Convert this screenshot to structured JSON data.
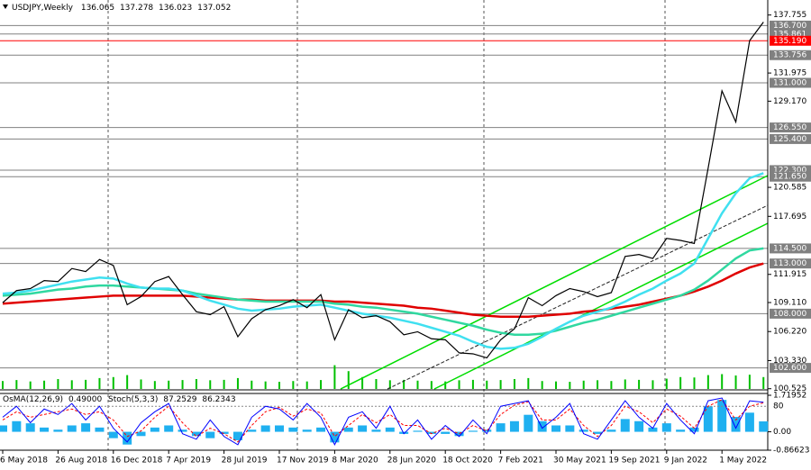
{
  "chart_data": {
    "type": "line",
    "symbol": "USDJPY,Weekly",
    "quote": [
      136.065,
      137.278,
      136.023,
      137.052
    ],
    "categories": [
      "6 May 2018",
      null,
      null,
      null,
      "26 Aug 2018",
      null,
      null,
      null,
      "16 Dec 2018",
      null,
      null,
      null,
      "7 Apr 2019",
      null,
      null,
      null,
      "28 Jul 2019",
      null,
      null,
      null,
      "17 Nov 2019",
      null,
      null,
      null,
      "8 Mar 2020",
      null,
      null,
      null,
      "28 Jun 2020",
      null,
      null,
      null,
      "18 Oct 2020",
      null,
      null,
      null,
      "7 Feb 2021",
      null,
      null,
      null,
      "30 May 2021",
      null,
      null,
      null,
      "19 Sep 2021",
      null,
      null,
      null,
      "9 Jan 2022",
      null,
      null,
      null,
      "1 May 2022",
      null,
      null,
      null
    ],
    "series": [
      {
        "color": "#000000",
        "width": 1.2,
        "values": [
          109.1,
          110.3,
          110.5,
          111.3,
          111.2,
          112.5,
          112.2,
          113.4,
          112.8,
          108.9,
          109.7,
          111.2,
          111.7,
          109.9,
          108.2,
          107.9,
          108.7,
          105.7,
          107.5,
          108.4,
          108.8,
          109.4,
          108.6,
          109.9,
          105.4,
          108.4,
          107.6,
          107.8,
          107.2,
          105.9,
          106.2,
          105.5,
          105.4,
          104.1,
          104.0,
          103.6,
          105.4,
          106.5,
          109.6,
          108.8,
          109.8,
          110.5,
          110.2,
          109.7,
          110.1,
          113.7,
          113.9,
          113.5,
          115.5,
          115.3,
          115.0,
          122.5,
          130.2,
          127.1,
          135.2,
          137.052
        ]
      },
      {
        "color": "#40e0f0",
        "width": 2.5,
        "values": [
          110.0,
          110.1,
          110.3,
          110.6,
          110.9,
          111.2,
          111.4,
          111.6,
          111.5,
          111.0,
          110.6,
          110.5,
          110.5,
          110.3,
          109.8,
          109.3,
          108.9,
          108.5,
          108.3,
          108.4,
          108.5,
          108.7,
          108.8,
          108.9,
          108.6,
          108.3,
          108.0,
          107.8,
          107.6,
          107.3,
          107.0,
          106.6,
          106.2,
          105.8,
          105.2,
          104.7,
          104.5,
          104.6,
          105.0,
          105.7,
          106.5,
          107.2,
          107.8,
          108.2,
          108.6,
          109.2,
          109.9,
          110.5,
          111.3,
          112.0,
          113.0,
          115.5,
          118.0,
          120.0,
          121.5,
          122.0
        ]
      },
      {
        "color": "#30d8a0",
        "width": 2.5,
        "values": [
          109.8,
          109.9,
          110.0,
          110.2,
          110.4,
          110.5,
          110.7,
          110.8,
          110.8,
          110.7,
          110.6,
          110.5,
          110.4,
          110.3,
          110.0,
          109.8,
          109.6,
          109.4,
          109.3,
          109.2,
          109.2,
          109.2,
          109.2,
          109.2,
          109.0,
          108.9,
          108.7,
          108.6,
          108.4,
          108.2,
          108.0,
          107.7,
          107.4,
          107.1,
          106.8,
          106.4,
          106.1,
          105.9,
          105.9,
          106.0,
          106.3,
          106.7,
          107.1,
          107.4,
          107.8,
          108.2,
          108.6,
          109.0,
          109.4,
          109.8,
          110.4,
          111.3,
          112.4,
          113.5,
          114.3,
          114.5
        ]
      },
      {
        "color": "#e00000",
        "width": 2.5,
        "values": [
          109.0,
          109.1,
          109.2,
          109.3,
          109.4,
          109.5,
          109.6,
          109.7,
          109.8,
          109.8,
          109.8,
          109.8,
          109.8,
          109.8,
          109.7,
          109.6,
          109.5,
          109.4,
          109.4,
          109.3,
          109.3,
          109.3,
          109.3,
          109.3,
          109.2,
          109.2,
          109.1,
          109.0,
          108.9,
          108.8,
          108.6,
          108.5,
          108.3,
          108.1,
          107.9,
          107.8,
          107.7,
          107.7,
          107.7,
          107.8,
          107.9,
          108.0,
          108.2,
          108.3,
          108.5,
          108.7,
          108.9,
          109.2,
          109.5,
          109.8,
          110.2,
          110.7,
          111.3,
          112.0,
          112.6,
          113.0
        ]
      }
    ],
    "volume": {
      "color": "#00c000",
      "values": [
        40,
        45,
        38,
        42,
        50,
        44,
        46,
        55,
        60,
        70,
        48,
        40,
        42,
        45,
        50,
        44,
        46,
        55,
        42,
        38,
        36,
        40,
        38,
        45,
        120,
        90,
        60,
        50,
        44,
        46,
        42,
        40,
        38,
        44,
        46,
        42,
        45,
        50,
        55,
        40,
        38,
        36,
        42,
        44,
        40,
        48,
        46,
        44,
        52,
        60,
        58,
        70,
        75,
        68,
        72,
        60
      ]
    },
    "ylim": [
      100.5,
      139.25
    ],
    "yticks": [
      137.755,
      131.975,
      {
        "value": 129.17,
        "label": "129.170"
      },
      120.585,
      117.695,
      111.915,
      {
        "value": 109.11,
        "label": "109.110"
      },
      {
        "value": 106.22,
        "label": "106.220"
      },
      {
        "value": 103.33,
        "label": "103.330"
      },
      100.525
    ],
    "levels": [
      {
        "value": 136.7,
        "label": "136.700",
        "color": "#808080"
      },
      {
        "value": 135.861,
        "label": "135.861",
        "color": "#808080"
      },
      {
        "value": 135.19,
        "label": "135.190",
        "color": "#ff0000"
      },
      {
        "value": 133.756,
        "label": "133.756",
        "color": "#808080"
      },
      {
        "value": 131,
        "label": "131.000",
        "color": "#808080"
      },
      {
        "value": 126.55,
        "label": "126.550",
        "color": "#808080"
      },
      {
        "value": 125.4,
        "label": "125.400",
        "color": "#808080"
      },
      {
        "value": 122.3,
        "label": "122.300",
        "color": "#808080"
      },
      {
        "value": 121.65,
        "label": "121.650",
        "color": "#808080"
      },
      {
        "value": 114.5,
        "label": "114.500",
        "color": "#808080"
      },
      {
        "value": 113,
        "label": "113.000",
        "color": "#808080"
      },
      {
        "value": 108,
        "label": "108.000",
        "color": "#808080"
      },
      {
        "value": 102.6,
        "label": "102.600",
        "color": "#808080"
      }
    ],
    "oscillator": {
      "osma_title": "OsMA(12,26,9)",
      "osma_current": {
        "value": 0.49,
        "label": "0.49000"
      },
      "stoch_title": "Stoch(5,3,3)",
      "stoch_current": [
        87.2529,
        86.2343
      ],
      "osma_color": "#1fb0f0",
      "osma": [
        0.3,
        0.5,
        0.4,
        0.2,
        0.1,
        0.3,
        0.4,
        0.2,
        -0.3,
        -0.6,
        -0.2,
        0.2,
        0.3,
        0.1,
        -0.2,
        -0.3,
        -0.1,
        -0.4,
        0.1,
        0.3,
        0.3,
        0.2,
        0.1,
        0.2,
        -0.5,
        0.2,
        0.3,
        0.1,
        0.2,
        -0.1,
        0.05,
        -0.1,
        -0.1,
        -0.2,
        0.05,
        0.1,
        0.4,
        0.5,
        0.8,
        0.5,
        0.3,
        0.3,
        0.1,
        -0.1,
        0.1,
        0.6,
        0.5,
        0.2,
        0.4,
        0.1,
        0.2,
        1.2,
        1.5,
        0.7,
        0.9,
        0.49
      ],
      "stoch_main_color": "#0000ff",
      "stoch_main": [
        60,
        80,
        50,
        75,
        65,
        85,
        55,
        80,
        40,
        15,
        50,
        70,
        85,
        30,
        20,
        55,
        25,
        10,
        60,
        80,
        75,
        55,
        85,
        60,
        10,
        60,
        70,
        40,
        80,
        30,
        55,
        20,
        45,
        25,
        55,
        30,
        80,
        85,
        90,
        40,
        60,
        85,
        30,
        20,
        55,
        90,
        60,
        40,
        85,
        55,
        30,
        90,
        95,
        40,
        90,
        87.2529
      ],
      "stoch_signal_color": "#ff0000",
      "stoch_signal": [
        55,
        70,
        60,
        65,
        70,
        75,
        65,
        70,
        55,
        25,
        35,
        60,
        80,
        50,
        25,
        40,
        30,
        15,
        45,
        70,
        78,
        62,
        75,
        68,
        25,
        45,
        65,
        50,
        65,
        45,
        45,
        30,
        40,
        30,
        45,
        35,
        65,
        82,
        88,
        55,
        55,
        75,
        45,
        25,
        45,
        80,
        70,
        50,
        75,
        62,
        40,
        80,
        92,
        55,
        80,
        86.2343
      ],
      "y2lim": [
        -0.86623,
        1.71952
      ],
      "y2ticks": [
        1.71952,
        {
          "value": 0,
          "label": "0.00"
        },
        -0.86623
      ],
      "stoch_lim": [
        0,
        100
      ],
      "stoch_ticks": [
        80
      ]
    }
  }
}
